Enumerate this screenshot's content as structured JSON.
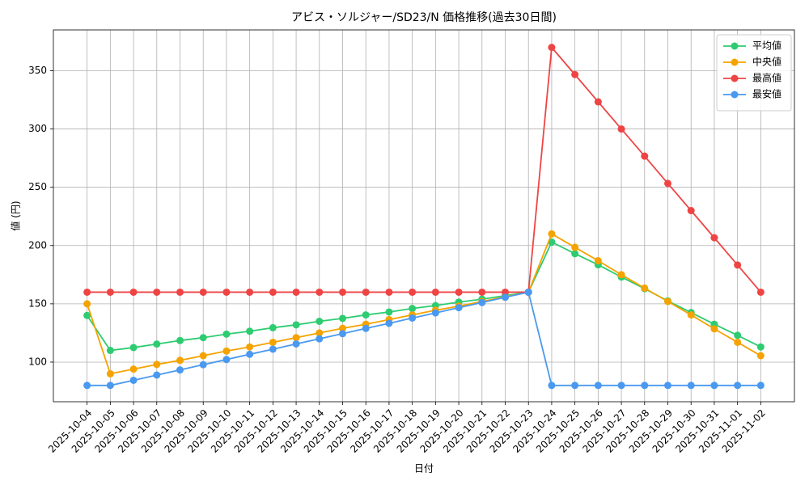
{
  "chart_data": {
    "type": "line",
    "title": "アビス・ソルジャー/SD23/N 価格推移(過去30日間)",
    "xlabel": "日付",
    "ylabel": "値 (円)",
    "categories": [
      "2025-10-04",
      "2025-10-05",
      "2025-10-06",
      "2025-10-07",
      "2025-10-08",
      "2025-10-09",
      "2025-10-10",
      "2025-10-11",
      "2025-10-12",
      "2025-10-13",
      "2025-10-14",
      "2025-10-15",
      "2025-10-16",
      "2025-10-17",
      "2025-10-18",
      "2025-10-19",
      "2025-10-20",
      "2025-10-21",
      "2025-10-22",
      "2025-10-23",
      "2025-10-24",
      "2025-10-25",
      "2025-10-26",
      "2025-10-27",
      "2025-10-28",
      "2025-10-29",
      "2025-10-30",
      "2025-10-31",
      "2025-11-01",
      "2025-11-02"
    ],
    "series": [
      {
        "name": "平均値",
        "color": "#2ecc71",
        "values": [
          140,
          110,
          112.5,
          115.5,
          118.5,
          121,
          124,
          126.5,
          129.5,
          132,
          135,
          137.5,
          140.5,
          143,
          146,
          148.5,
          151.5,
          154,
          157,
          160,
          203,
          193,
          183.5,
          173,
          163,
          152.5,
          142.5,
          132.5,
          123,
          113
        ]
      },
      {
        "name": "中央値",
        "color": "#f5a300",
        "values": [
          150,
          90,
          94,
          98,
          101.5,
          105.5,
          109.5,
          113,
          117,
          121,
          125,
          129,
          132.5,
          136.5,
          140.5,
          144.5,
          148,
          152,
          156,
          160,
          210,
          198.5,
          187,
          175,
          163.5,
          152,
          140.5,
          128.5,
          117,
          105.5
        ]
      },
      {
        "name": "最高値",
        "color": "#ef4444",
        "values": [
          160,
          160,
          160,
          160,
          160,
          160,
          160,
          160,
          160,
          160,
          160,
          160,
          160,
          160,
          160,
          160,
          160,
          160,
          160,
          160,
          370,
          346.7,
          323.3,
          300,
          276.7,
          253.3,
          230,
          206.7,
          183.3,
          160
        ]
      },
      {
        "name": "最安値",
        "color": "#4a99f0",
        "values": [
          80,
          80,
          84.4,
          88.9,
          93.3,
          97.8,
          102.2,
          106.7,
          111.1,
          115.6,
          120,
          124.4,
          128.9,
          133.3,
          137.8,
          142.2,
          146.7,
          151.1,
          155.6,
          160,
          80,
          80,
          80,
          80,
          80,
          80,
          80,
          80,
          80,
          80
        ]
      }
    ],
    "ylim": [
      66,
      385
    ],
    "yticks": [
      100,
      150,
      200,
      250,
      300,
      350
    ],
    "grid": true,
    "legend": "upper right"
  }
}
